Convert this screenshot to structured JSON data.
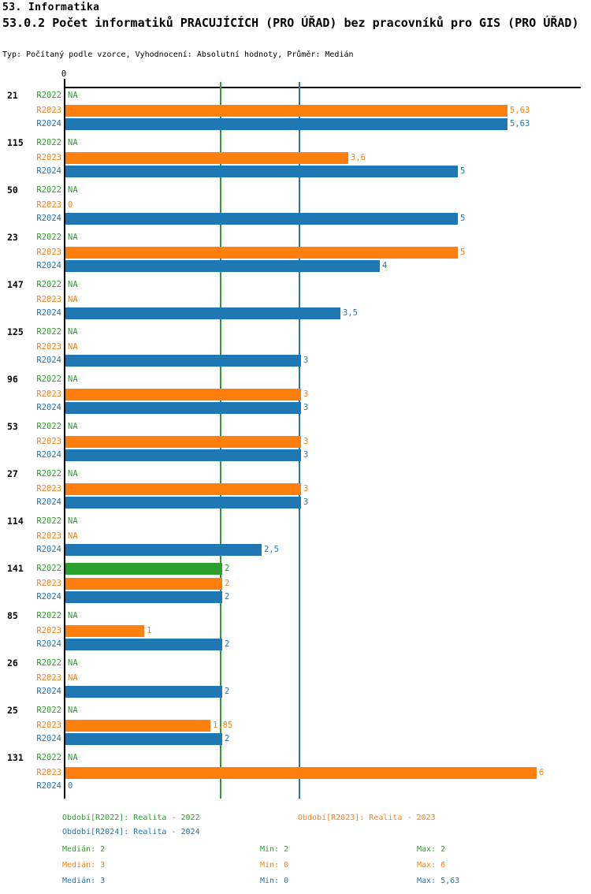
{
  "header": {
    "title": "53. Informatika",
    "subtitle": "53.0.2 Počet informatiků PRACUJÍCÍCH (PRO ÚŘAD) bez pracovníků pro GIS (PRO ÚŘAD)",
    "meta": "Typ: Počítaný podle vzorce, Vyhodnocení: Absolutní hodnoty, Průměr: Medián"
  },
  "chart_data": {
    "type": "bar",
    "orientation": "horizontal",
    "axis": {
      "zero_label": "0",
      "xlim": [
        0,
        6.56
      ],
      "grid": "median-lines-only"
    },
    "series": [
      {
        "id": "R2022",
        "label": "R2022",
        "color": "#2ca02c",
        "legend": "Období[R2022]: Realita - 2022"
      },
      {
        "id": "R2023",
        "label": "R2023",
        "color": "#ff7f0e",
        "legend": "Období[R2023]: Realita - 2023"
      },
      {
        "id": "R2024",
        "label": "R2024",
        "color": "#1f77b4",
        "legend": "Období[R2024]: Realita - 2024"
      }
    ],
    "median_gridlines": [
      {
        "series": "R2022",
        "value": 2
      },
      {
        "series": "R2024",
        "value": 3
      }
    ],
    "groups": [
      {
        "label": "21",
        "rows": [
          {
            "series": "R2022",
            "value": null,
            "display": "NA"
          },
          {
            "series": "R2023",
            "value": 5.63,
            "display": "5,63"
          },
          {
            "series": "R2024",
            "value": 5.63,
            "display": "5,63"
          }
        ]
      },
      {
        "label": "115",
        "rows": [
          {
            "series": "R2022",
            "value": null,
            "display": "NA"
          },
          {
            "series": "R2023",
            "value": 3.6,
            "display": "3,6"
          },
          {
            "series": "R2024",
            "value": 5,
            "display": "5"
          }
        ]
      },
      {
        "label": "50",
        "rows": [
          {
            "series": "R2022",
            "value": null,
            "display": "NA"
          },
          {
            "series": "R2023",
            "value": 0,
            "display": "0"
          },
          {
            "series": "R2024",
            "value": 5,
            "display": "5"
          }
        ]
      },
      {
        "label": "23",
        "rows": [
          {
            "series": "R2022",
            "value": null,
            "display": "NA"
          },
          {
            "series": "R2023",
            "value": 5,
            "display": "5"
          },
          {
            "series": "R2024",
            "value": 4,
            "display": "4"
          }
        ]
      },
      {
        "label": "147",
        "rows": [
          {
            "series": "R2022",
            "value": null,
            "display": "NA"
          },
          {
            "series": "R2023",
            "value": null,
            "display": "NA"
          },
          {
            "series": "R2024",
            "value": 3.5,
            "display": "3,5"
          }
        ]
      },
      {
        "label": "125",
        "rows": [
          {
            "series": "R2022",
            "value": null,
            "display": "NA"
          },
          {
            "series": "R2023",
            "value": null,
            "display": "NA"
          },
          {
            "series": "R2024",
            "value": 3,
            "display": "3"
          }
        ]
      },
      {
        "label": "96",
        "rows": [
          {
            "series": "R2022",
            "value": null,
            "display": "NA"
          },
          {
            "series": "R2023",
            "value": 3,
            "display": "3"
          },
          {
            "series": "R2024",
            "value": 3,
            "display": "3"
          }
        ]
      },
      {
        "label": "53",
        "rows": [
          {
            "series": "R2022",
            "value": null,
            "display": "NA"
          },
          {
            "series": "R2023",
            "value": 3,
            "display": "3"
          },
          {
            "series": "R2024",
            "value": 3,
            "display": "3"
          }
        ]
      },
      {
        "label": "27",
        "rows": [
          {
            "series": "R2022",
            "value": null,
            "display": "NA"
          },
          {
            "series": "R2023",
            "value": 3,
            "display": "3"
          },
          {
            "series": "R2024",
            "value": 3,
            "display": "3"
          }
        ]
      },
      {
        "label": "114",
        "rows": [
          {
            "series": "R2022",
            "value": null,
            "display": "NA"
          },
          {
            "series": "R2023",
            "value": null,
            "display": "NA"
          },
          {
            "series": "R2024",
            "value": 2.5,
            "display": "2,5"
          }
        ]
      },
      {
        "label": "141",
        "rows": [
          {
            "series": "R2022",
            "value": 2,
            "display": "2"
          },
          {
            "series": "R2023",
            "value": 2,
            "display": "2"
          },
          {
            "series": "R2024",
            "value": 2,
            "display": "2"
          }
        ]
      },
      {
        "label": "85",
        "rows": [
          {
            "series": "R2022",
            "value": null,
            "display": "NA"
          },
          {
            "series": "R2023",
            "value": 1,
            "display": "1"
          },
          {
            "series": "R2024",
            "value": 2,
            "display": "2"
          }
        ]
      },
      {
        "label": "26",
        "rows": [
          {
            "series": "R2022",
            "value": null,
            "display": "NA"
          },
          {
            "series": "R2023",
            "value": null,
            "display": "NA"
          },
          {
            "series": "R2024",
            "value": 2,
            "display": "2"
          }
        ]
      },
      {
        "label": "25",
        "rows": [
          {
            "series": "R2022",
            "value": null,
            "display": "NA"
          },
          {
            "series": "R2023",
            "value": 1.85,
            "display": "1,85"
          },
          {
            "series": "R2024",
            "value": 2,
            "display": "2"
          }
        ]
      },
      {
        "label": "131",
        "rows": [
          {
            "series": "R2022",
            "value": null,
            "display": "NA"
          },
          {
            "series": "R2023",
            "value": 6,
            "display": "6"
          },
          {
            "series": "R2024",
            "value": 0,
            "display": "0"
          }
        ]
      }
    ],
    "stats": {
      "rows": [
        {
          "series": "R2022",
          "color": "#2ca02c",
          "median": "Medián: 2",
          "min": "Min: 2",
          "max": "Max: 2"
        },
        {
          "series": "R2023",
          "color": "#ff7f0e",
          "median": "Medián: 3",
          "min": "Min: 0",
          "max": "Max: 6"
        },
        {
          "series": "R2024",
          "color": "#1f77b4",
          "median": "Medián: 3",
          "min": "Min: 0",
          "max": "Max: 5,63"
        }
      ]
    }
  }
}
